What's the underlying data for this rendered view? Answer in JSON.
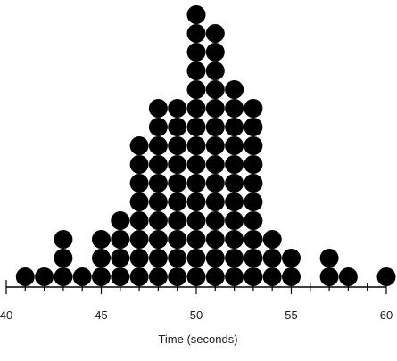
{
  "chart_data": {
    "type": "scatter",
    "subtype": "dot-plot",
    "title": "",
    "xlabel": "Time (seconds)",
    "ylabel": "",
    "xlim": [
      40,
      60
    ],
    "xticks": [
      40,
      45,
      50,
      55,
      60
    ],
    "xtick_labels": [
      "40",
      "45",
      "50",
      "55",
      "60"
    ],
    "grid": false,
    "colors": {
      "dot": "#000000",
      "axis": "#000000"
    },
    "x": [
      41,
      42,
      43,
      44,
      45,
      46,
      47,
      48,
      49,
      50,
      51,
      52,
      53,
      54,
      55,
      57,
      58,
      60
    ],
    "counts": [
      1,
      1,
      3,
      1,
      3,
      4,
      8,
      10,
      10,
      15,
      14,
      11,
      10,
      3,
      2,
      2,
      1,
      1
    ]
  }
}
